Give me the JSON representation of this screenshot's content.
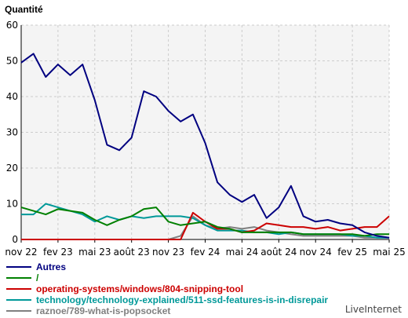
{
  "chart_data": {
    "type": "line",
    "ylabel": "Quantité",
    "ylim": [
      0,
      60
    ],
    "yticks": [
      0,
      10,
      20,
      30,
      40,
      50,
      60
    ],
    "xtick_labels": [
      "nov 22",
      "fev 23",
      "mai 23",
      "août 23",
      "nov 23",
      "fev 24",
      "mai 24",
      "août 24",
      "nov 24",
      "fev 25",
      "mai 25"
    ],
    "grid": true,
    "legend_position": "bottom",
    "series": [
      {
        "name": "Autres",
        "color": "#000080",
        "values": [
          49.5,
          52,
          45.5,
          49,
          46,
          49,
          39,
          26.5,
          25,
          28.5,
          41.5,
          40,
          36,
          33,
          35,
          27,
          16,
          12.5,
          10.5,
          12.5,
          6,
          9,
          15,
          6.5,
          5,
          5.5,
          4.5,
          4,
          2,
          1,
          0.5
        ]
      },
      {
        "name": "/",
        "color": "#008000",
        "values": [
          9,
          8,
          7,
          8.5,
          8,
          7.5,
          5.5,
          4,
          5.5,
          6.5,
          8.5,
          9,
          5,
          4,
          4.5,
          5,
          3.5,
          3,
          2,
          2,
          2,
          2,
          2,
          1.5,
          1.5,
          1.5,
          1.5,
          1.5,
          1,
          1.5,
          1.5
        ]
      },
      {
        "name": "operating-systems/windows/804-snipping-tool",
        "color": "#cc0000",
        "values": [
          0,
          0,
          0,
          0,
          0,
          0,
          0,
          0,
          0,
          0,
          0,
          0,
          0,
          0,
          7.5,
          5,
          3,
          3,
          2,
          2.5,
          4.5,
          4,
          3.5,
          3.5,
          3,
          3.5,
          2.5,
          3,
          3.5,
          3.5,
          6.5
        ]
      },
      {
        "name": "technology/technology-explained/511-ssd-features-is-in-disrepair",
        "color": "#009999",
        "values": [
          7,
          7,
          10,
          9,
          8,
          7,
          5,
          6.5,
          5.5,
          6.5,
          6,
          6.5,
          6.5,
          6.5,
          6,
          4,
          2.5,
          2.5,
          2.5,
          2,
          2,
          1.5,
          2,
          1.5,
          1.5,
          1.5,
          1.5,
          1,
          1,
          0.5,
          0.5
        ]
      },
      {
        "name": "raznoe/789-what-is-popsocket",
        "color": "#808080",
        "values": [
          0,
          0,
          0,
          0,
          0,
          0,
          0,
          0,
          0,
          0,
          0,
          0,
          0,
          1,
          6.5,
          4,
          3,
          3.5,
          3,
          3.5,
          2.5,
          2,
          1.5,
          1,
          1,
          1,
          1,
          1,
          0.5,
          0.5,
          0.5
        ]
      }
    ]
  },
  "footer": {
    "credit": "LiveInternet"
  }
}
